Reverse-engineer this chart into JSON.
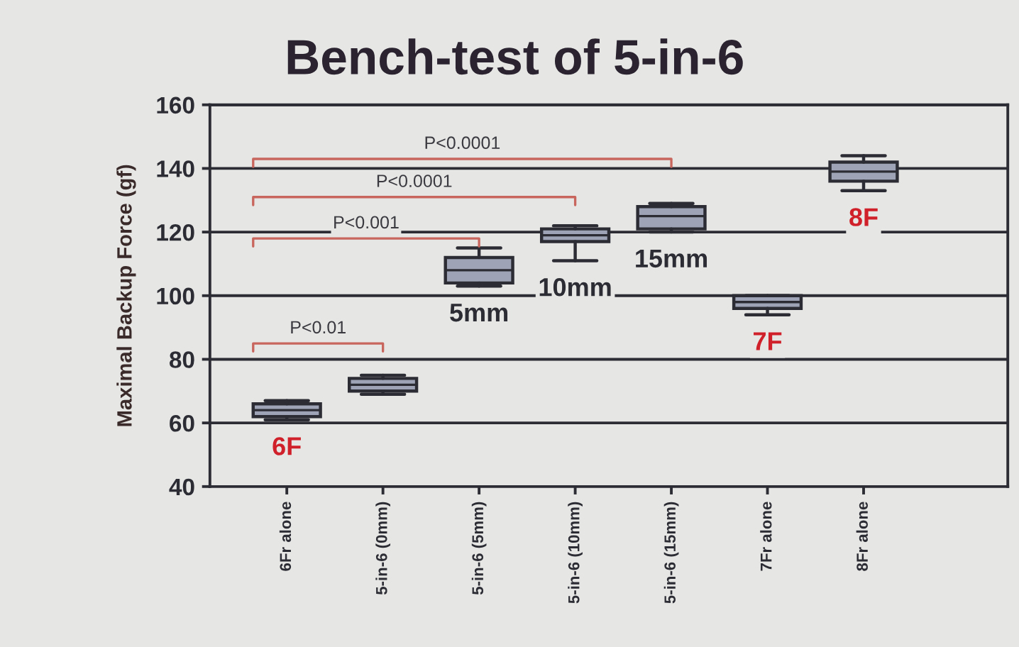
{
  "chart_data": {
    "type": "box",
    "title": "Bench-test of 5-in-6",
    "ylabel": "Maximal Backup Force (gf)",
    "categories": [
      "6Fr alone",
      "5-in-6 (0mm)",
      "5-in-6 (5mm)",
      "5-in-6 (10mm)",
      "5-in-6 (15mm)",
      "7Fr alone",
      "8Fr alone"
    ],
    "color": "#9ea4b6",
    "boxes": [
      {
        "low": 61,
        "q1": 62,
        "median": 64,
        "q3": 66,
        "high": 67
      },
      {
        "low": 69,
        "q1": 70,
        "median": 72,
        "q3": 74,
        "high": 75
      },
      {
        "low": 103,
        "q1": 104,
        "median": 108,
        "q3": 112,
        "high": 115
      },
      {
        "low": 111,
        "q1": 117,
        "median": 119,
        "q3": 121,
        "high": 122
      },
      {
        "low": 120,
        "q1": 121,
        "median": 125,
        "q3": 128,
        "high": 129
      },
      {
        "low": 94,
        "q1": 96,
        "median": 98,
        "q3": 100,
        "high": 100
      },
      {
        "low": 133,
        "q1": 136,
        "median": 139,
        "q3": 142,
        "high": 144
      }
    ],
    "ylim": [
      40,
      160
    ],
    "yticks": [
      40,
      60,
      80,
      100,
      120,
      140,
      160
    ],
    "grid": "y",
    "annotations": [
      "P<0.01",
      "P<0.001",
      "P<0.0001",
      "P<0.0001",
      "6F",
      "5mm",
      "10mm",
      "15mm",
      "7F",
      "8F"
    ]
  }
}
